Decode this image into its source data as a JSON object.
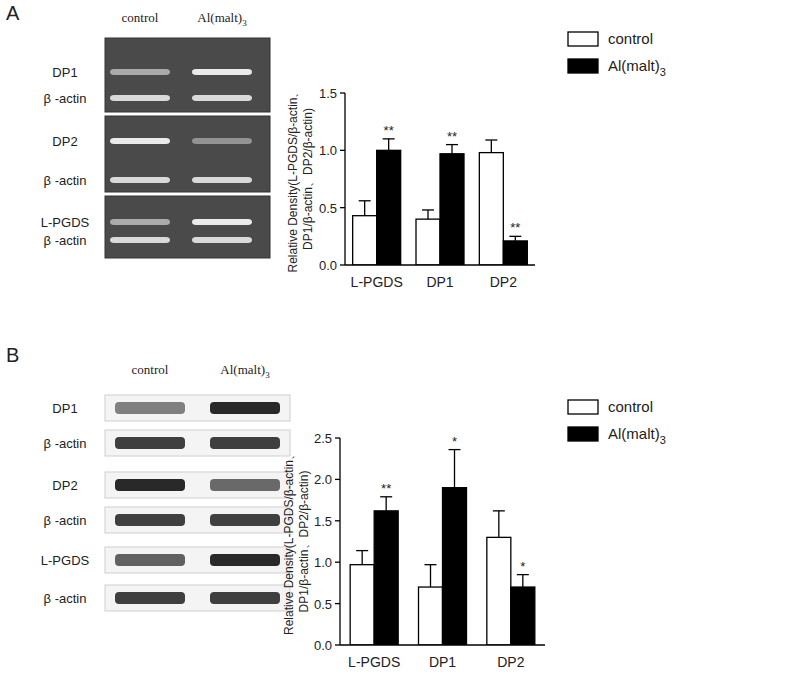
{
  "chart_data": [
    {
      "type": "bar",
      "panel": "A",
      "blot_lanes": [
        "control",
        "Al(malt)3"
      ],
      "blot_rows": [
        "DP1",
        "β -actin",
        "DP2",
        "β -actin",
        "L-PGDS",
        "β -actin"
      ],
      "categories": [
        "L-PGDS",
        "DP1",
        "DP2"
      ],
      "series": [
        {
          "name": "control",
          "color": "#ffffff",
          "values": [
            0.43,
            0.4,
            0.98
          ],
          "errors": [
            0.13,
            0.08,
            0.11
          ]
        },
        {
          "name": "Al(malt)3",
          "color": "#000000",
          "values": [
            1.0,
            0.97,
            0.21
          ],
          "errors": [
            0.1,
            0.08,
            0.04
          ],
          "annotations": [
            "**",
            "**",
            "**"
          ]
        }
      ],
      "y_label": [
        "Relative Density(L-PGDS/β-actin、",
        "DP1/β-actin、DP2/β-actin)"
      ],
      "ylim": [
        0,
        1.5
      ],
      "yticks": [
        {
          "value": 0,
          "label": "0.0"
        },
        {
          "value": 0.5,
          "label": "0.5"
        },
        {
          "value": 1,
          "label": "1.0"
        },
        {
          "value": 1.5,
          "label": "1.5"
        }
      ],
      "legend": "top-right"
    },
    {
      "type": "bar",
      "panel": "B",
      "blot_lanes": [
        "control",
        "Al(malt)3"
      ],
      "blot_rows": [
        "DP1",
        "β -actin",
        "DP2",
        "β -actin",
        "L-PGDS",
        "β -actin"
      ],
      "categories": [
        "L-PGDS",
        "DP1",
        "DP2"
      ],
      "series": [
        {
          "name": "control",
          "color": "#ffffff",
          "values": [
            0.97,
            0.7,
            1.3
          ],
          "errors": [
            0.17,
            0.27,
            0.32
          ]
        },
        {
          "name": "Al(malt)3",
          "color": "#000000",
          "values": [
            1.62,
            1.9,
            0.7
          ],
          "errors": [
            0.17,
            0.46,
            0.15
          ],
          "annotations": [
            "**",
            "*",
            "*"
          ]
        }
      ],
      "y_label": [
        "Relative Density(L-PGDS/β-actin、",
        "DP1/β-actin、DP2/β-actin)"
      ],
      "ylim": [
        0,
        2.5
      ],
      "yticks": [
        {
          "value": 0,
          "label": "0.0"
        },
        {
          "value": 0.5,
          "label": "0.5"
        },
        {
          "value": 1,
          "label": "1.0"
        },
        {
          "value": 1.5,
          "label": "1.5"
        },
        {
          "value": 2,
          "label": "2.0"
        },
        {
          "value": 2.5,
          "label": "2.5"
        }
      ],
      "legend": "top-right"
    }
  ]
}
